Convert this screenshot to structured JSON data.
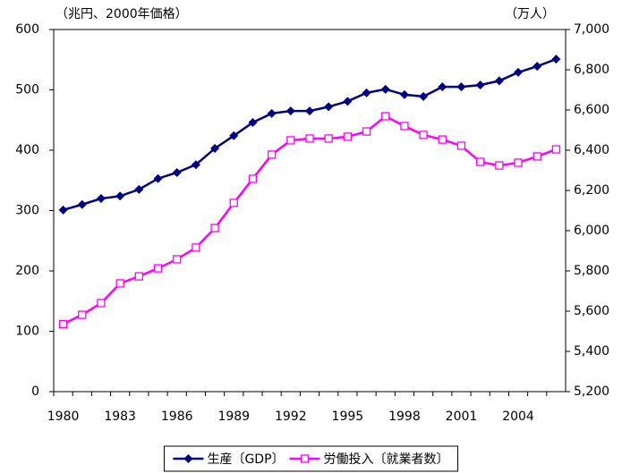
{
  "chart_data": {
    "type": "line",
    "y_label": "（兆円、2000年価格）",
    "y2_label": "（万人）",
    "categories": [
      "1980",
      null,
      null,
      "1983",
      null,
      null,
      "1986",
      null,
      null,
      "1989",
      null,
      null,
      "1992",
      null,
      null,
      "1995",
      null,
      null,
      "1998",
      null,
      null,
      "2001",
      null,
      null,
      "2004",
      null,
      null
    ],
    "ylim": [
      0,
      600
    ],
    "yticks": [
      0,
      100,
      200,
      300,
      400,
      500,
      600
    ],
    "y2lim": [
      5200,
      7000
    ],
    "y2ticks": [
      {
        "value": 5200,
        "label": "5,200"
      },
      {
        "value": 5400,
        "label": "5,400"
      },
      {
        "value": 5600,
        "label": "5,600"
      },
      {
        "value": 5800,
        "label": "5,800"
      },
      {
        "value": 6000,
        "label": "6,000"
      },
      {
        "value": 6200,
        "label": "6,200"
      },
      {
        "value": 6400,
        "label": "6,400"
      },
      {
        "value": 6600,
        "label": "6,600"
      },
      {
        "value": 6800,
        "label": "6,800"
      },
      {
        "value": 7000,
        "label": "7,000"
      }
    ],
    "legend": "bottom",
    "series": [
      {
        "name": "生産〔GDP〕",
        "color": "#000080",
        "marker": "diamond",
        "values": [
          301,
          310,
          320,
          324,
          335,
          353,
          363,
          376,
          403,
          424,
          446,
          461,
          465,
          465,
          472,
          481,
          495,
          501,
          492,
          489,
          505,
          505,
          508,
          515,
          529,
          539,
          551
        ]
      },
      {
        "name": "労働投入〔就業者数〕",
        "color": "#ff00ff",
        "marker": "square",
        "axis": "y2",
        "values": [
          5536,
          5582,
          5640,
          5738,
          5773,
          5813,
          5858,
          5916,
          6013,
          6138,
          6258,
          6378,
          6449,
          6458,
          6458,
          6467,
          6493,
          6569,
          6520,
          6476,
          6453,
          6422,
          6342,
          6324,
          6338,
          6369,
          6404
        ]
      }
    ]
  }
}
